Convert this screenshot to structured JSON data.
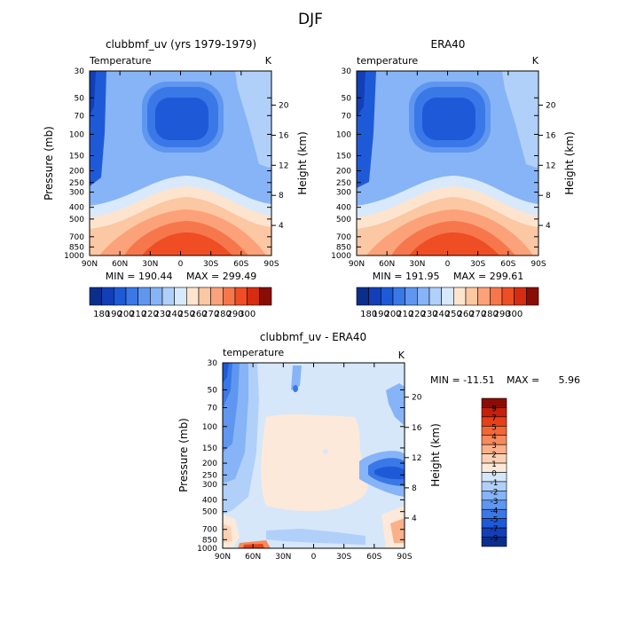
{
  "figure": {
    "season": "DJF"
  },
  "chart_data": [
    {
      "type": "heatmap",
      "id": "model",
      "title": "clubbmf_uv (yrs 1979-1979)",
      "variable": "Temperature",
      "units": "K",
      "xlabel": "",
      "ylabel": "Pressure (mb)",
      "y2label": "Height (km)",
      "x_ticks": [
        "90N",
        "60N",
        "30N",
        "0",
        "30S",
        "60S",
        "90S"
      ],
      "x_range": [
        90,
        -90
      ],
      "y_ticks": [
        30,
        50,
        70,
        100,
        150,
        200,
        250,
        300,
        400,
        500,
        700,
        850,
        1000
      ],
      "y_range_mb": [
        30,
        1000
      ],
      "y_scale": "log",
      "y2_ticks_km": [
        20,
        16,
        12,
        8,
        4
      ],
      "min_text": "MIN = 190.44",
      "max_text": "MAX = 299.49",
      "colorbar": {
        "orientation": "horizontal",
        "labels": [
          "180",
          "190",
          "200",
          "210",
          "220",
          "230",
          "240",
          "250",
          "260",
          "270",
          "280",
          "290",
          "300"
        ],
        "colors": [
          "#0a2e8c",
          "#123fb8",
          "#1e5ad8",
          "#3a78e8",
          "#5f96f0",
          "#86b4f6",
          "#b0d0f9",
          "#d8e9fb",
          "#fde4cf",
          "#fcc7a3",
          "#fba27a",
          "#f7774d",
          "#ef4e25",
          "#d62d10",
          "#8a0d05"
        ]
      }
    },
    {
      "type": "heatmap",
      "id": "obs",
      "title": "ERA40",
      "variable": "temperature",
      "units": "K",
      "xlabel": "",
      "ylabel": "Pressure (mb)",
      "y2label": "Height (km)",
      "x_ticks": [
        "90N",
        "60N",
        "30N",
        "0",
        "30S",
        "60S",
        "90S"
      ],
      "x_range": [
        90,
        -90
      ],
      "y_ticks": [
        30,
        50,
        70,
        100,
        150,
        200,
        250,
        300,
        400,
        500,
        700,
        850,
        1000
      ],
      "y_range_mb": [
        30,
        1000
      ],
      "y_scale": "log",
      "y2_ticks_km": [
        20,
        16,
        12,
        8,
        4
      ],
      "min_text": "MIN = 191.95",
      "max_text": "MAX = 299.61",
      "colorbar": {
        "orientation": "horizontal",
        "labels": [
          "180",
          "190",
          "200",
          "210",
          "220",
          "230",
          "240",
          "250",
          "260",
          "270",
          "280",
          "290",
          "300"
        ],
        "colors": [
          "#0a2e8c",
          "#123fb8",
          "#1e5ad8",
          "#3a78e8",
          "#5f96f0",
          "#86b4f6",
          "#b0d0f9",
          "#d8e9fb",
          "#fde4cf",
          "#fcc7a3",
          "#fba27a",
          "#f7774d",
          "#ef4e25",
          "#d62d10",
          "#8a0d05"
        ]
      }
    },
    {
      "type": "heatmap",
      "id": "diff",
      "title": "clubbmf_uv - ERA40",
      "variable": "temperature",
      "units": "K",
      "xlabel": "",
      "ylabel": "Pressure (mb)",
      "y2label": "Height (km)",
      "x_ticks": [
        "90N",
        "60N",
        "30N",
        "0",
        "30S",
        "60S",
        "90S"
      ],
      "x_range": [
        90,
        -90
      ],
      "y_ticks": [
        30,
        50,
        70,
        100,
        150,
        200,
        250,
        300,
        400,
        500,
        700,
        850,
        1000
      ],
      "y_range_mb": [
        30,
        1000
      ],
      "y_scale": "log",
      "y2_ticks_km": [
        20,
        16,
        12,
        8,
        4
      ],
      "min_label": "MIN = -11.51",
      "max_label": "MAX =",
      "max_value": "5.96",
      "colorbar": {
        "orientation": "vertical",
        "labels": [
          "9",
          "7",
          "5",
          "4",
          "3",
          "2",
          "1",
          "0",
          "-1",
          "-2",
          "-3",
          "-4",
          "-5",
          "-7",
          "-9"
        ],
        "colors": [
          "#8a0d05",
          "#c4200b",
          "#e5401a",
          "#f26637",
          "#f78a5c",
          "#fab08a",
          "#fcd1b3",
          "#fde9d9",
          "#d6e7fa",
          "#b0d0f9",
          "#86b4f6",
          "#5f96f0",
          "#3a78e8",
          "#1e5ad8",
          "#123fb8",
          "#0a2e8c"
        ]
      }
    }
  ]
}
